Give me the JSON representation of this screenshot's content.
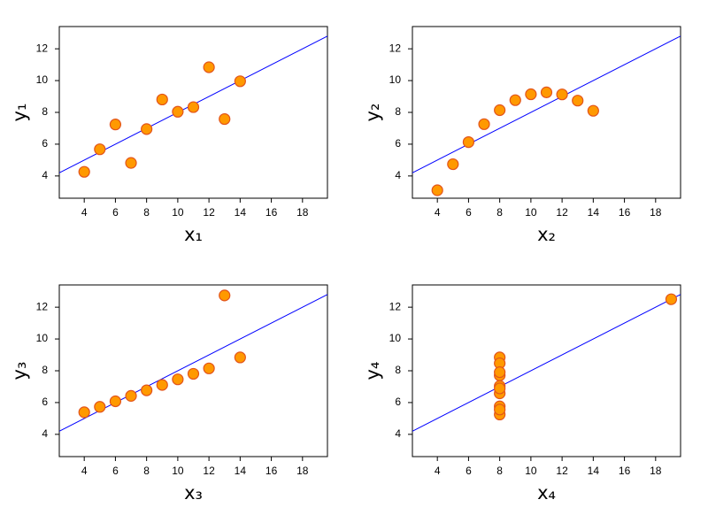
{
  "chart_data": [
    {
      "type": "scatter",
      "x_label": "x₁",
      "y_label": "y₁",
      "x": [
        10,
        8,
        13,
        9,
        11,
        14,
        6,
        4,
        12,
        7,
        5
      ],
      "y": [
        8.04,
        6.95,
        7.58,
        8.81,
        8.33,
        9.96,
        7.24,
        4.26,
        10.84,
        4.82,
        5.68
      ],
      "color": "#ff9900",
      "edge_color": "#e2541b",
      "trend_line": {
        "intercept": 3,
        "slope": 0.5,
        "color": "#0000ff"
      },
      "xlim": [
        2.4,
        19.6
      ],
      "ylim": [
        2.6,
        13.4
      ],
      "xticks": [
        4,
        6,
        8,
        10,
        12,
        14,
        16,
        18
      ],
      "yticks": [
        4,
        6,
        8,
        10,
        12
      ],
      "grid": false
    },
    {
      "type": "scatter",
      "x_label": "x₂",
      "y_label": "y₂",
      "x": [
        10,
        8,
        13,
        9,
        11,
        14,
        6,
        4,
        12,
        7,
        5
      ],
      "y": [
        9.14,
        8.14,
        8.74,
        8.77,
        9.26,
        8.1,
        6.13,
        3.1,
        9.13,
        7.26,
        4.74
      ],
      "color": "#ff9900",
      "edge_color": "#e2541b",
      "trend_line": {
        "intercept": 3,
        "slope": 0.5,
        "color": "#0000ff"
      },
      "xlim": [
        2.4,
        19.6
      ],
      "ylim": [
        2.6,
        13.4
      ],
      "xticks": [
        4,
        6,
        8,
        10,
        12,
        14,
        16,
        18
      ],
      "yticks": [
        4,
        6,
        8,
        10,
        12
      ],
      "grid": false
    },
    {
      "type": "scatter",
      "x_label": "x₃",
      "y_label": "y₃",
      "x": [
        10,
        8,
        13,
        9,
        11,
        14,
        6,
        4,
        12,
        7,
        5
      ],
      "y": [
        7.46,
        6.77,
        12.74,
        7.11,
        7.81,
        8.84,
        6.08,
        5.39,
        8.15,
        6.42,
        5.73
      ],
      "color": "#ff9900",
      "edge_color": "#e2541b",
      "trend_line": {
        "intercept": 3,
        "slope": 0.5,
        "color": "#0000ff"
      },
      "xlim": [
        2.4,
        19.6
      ],
      "ylim": [
        2.6,
        13.4
      ],
      "xticks": [
        4,
        6,
        8,
        10,
        12,
        14,
        16,
        18
      ],
      "yticks": [
        4,
        6,
        8,
        10,
        12
      ],
      "grid": false
    },
    {
      "type": "scatter",
      "x_label": "x₄",
      "y_label": "y₄",
      "x": [
        8,
        8,
        8,
        8,
        8,
        8,
        8,
        19,
        8,
        8,
        8
      ],
      "y": [
        6.58,
        5.76,
        7.71,
        8.84,
        8.47,
        7.04,
        5.25,
        12.5,
        5.56,
        7.91,
        6.89
      ],
      "color": "#ff9900",
      "edge_color": "#e2541b",
      "trend_line": {
        "intercept": 3,
        "slope": 0.5,
        "color": "#0000ff"
      },
      "xlim": [
        2.4,
        19.6
      ],
      "ylim": [
        2.6,
        13.4
      ],
      "xticks": [
        4,
        6,
        8,
        10,
        12,
        14,
        16,
        18
      ],
      "yticks": [
        4,
        6,
        8,
        10,
        12
      ],
      "grid": false
    }
  ]
}
